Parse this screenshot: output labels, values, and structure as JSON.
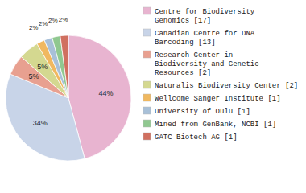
{
  "chart_data": {
    "type": "pie",
    "categories": [
      "Centre for Biodiversity\nGenomics [17]",
      "Canadian Centre for DNA\nBarcoding [13]",
      "Research Center in\nBiodiversity and Genetic\nResources [2]",
      "Naturalis Biodiversity Center [2]",
      "Wellcome Sanger Institute [1]",
      "University of Oulu [1]",
      "Mined from GenBank, NCBI [1]",
      "GATC Biotech AG [1]"
    ],
    "values": [
      44,
      34,
      5,
      5,
      2,
      2,
      2,
      2
    ],
    "value_labels": [
      "44%",
      "34%",
      "5%",
      "5%",
      "2%",
      "2%",
      "2%",
      "2%"
    ],
    "colors": [
      "#e8b4d0",
      "#c8d4e8",
      "#e8a090",
      "#d4d890",
      "#f0b860",
      "#a8c0d8",
      "#90c890",
      "#d07060"
    ],
    "data_labels": true,
    "legend": "right"
  }
}
